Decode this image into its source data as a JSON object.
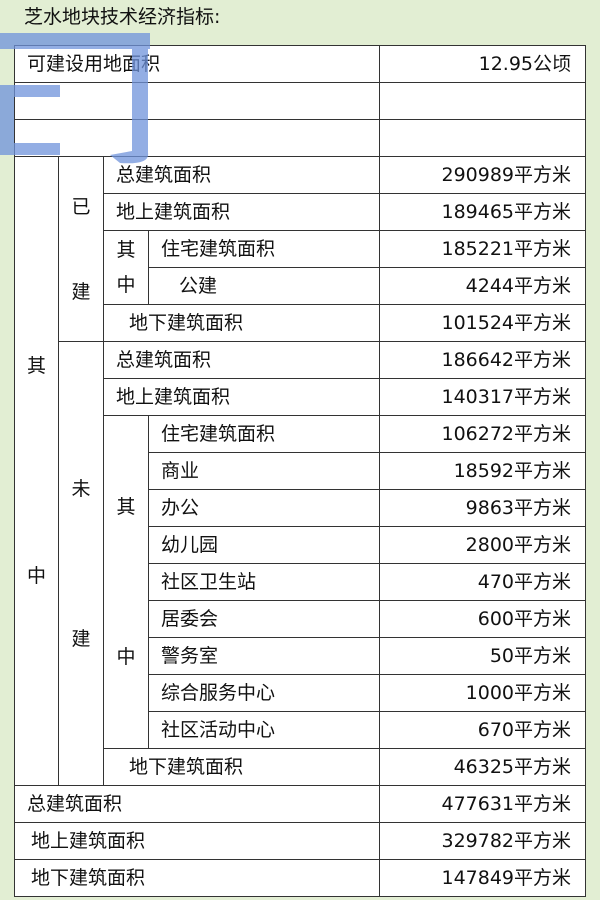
{
  "title": "芝水地块技术经济指标:",
  "land_area": {
    "label": "可建设用地面积",
    "value": "12.95公顷"
  },
  "group_label": "其中",
  "built": {
    "label": "已建",
    "total": {
      "label": "总建筑面积",
      "value": "290989平方米"
    },
    "above": {
      "label": "地上建筑面积",
      "value": "189465平方米"
    },
    "sub_label": "其中",
    "items": [
      {
        "label": "住宅建筑面积",
        "value": "185221平方米"
      },
      {
        "label": "公建",
        "value": "4244平方米"
      }
    ],
    "below": {
      "label": "地下建筑面积",
      "value": "101524平方米"
    }
  },
  "unbuilt": {
    "label": "未建",
    "total": {
      "label": "总建筑面积",
      "value": "186642平方米"
    },
    "above": {
      "label": "地上建筑面积",
      "value": "140317平方米"
    },
    "sub_label": "其中",
    "items": [
      {
        "label": "住宅建筑面积",
        "value": "106272平方米"
      },
      {
        "label": "商业",
        "value": "18592平方米"
      },
      {
        "label": "办公",
        "value": "9863平方米"
      },
      {
        "label": "幼儿园",
        "value": "2800平方米"
      },
      {
        "label": "社区卫生站",
        "value": "470平方米"
      },
      {
        "label": "居委会",
        "value": "600平方米"
      },
      {
        "label": "警务室",
        "value": "50平方米"
      },
      {
        "label": "综合服务中心",
        "value": "1000平方米"
      },
      {
        "label": "社区活动中心",
        "value": "670平方米"
      }
    ],
    "below": {
      "label": "地下建筑面积",
      "value": "46325平方米"
    }
  },
  "totals": [
    {
      "label": "总建筑面积",
      "value": "477631平方米"
    },
    {
      "label": "地上建筑面积",
      "value": "329782平方米"
    },
    {
      "label": "地下建筑面积",
      "value": "147849平方米"
    }
  ],
  "watermark": "司"
}
